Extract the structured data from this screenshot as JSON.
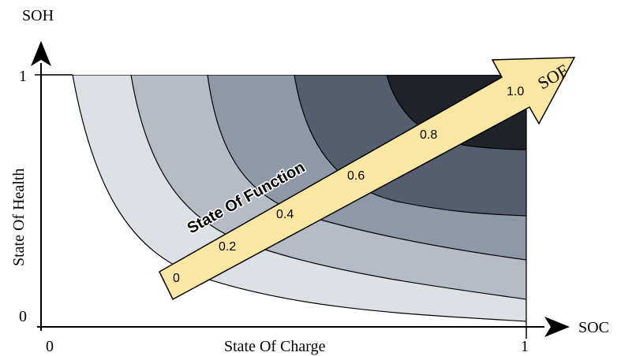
{
  "axes": {
    "y_symbol": "SOH",
    "y_title": "State Of Health",
    "y_tick_top": "1",
    "y_tick_bottom": "0",
    "x_symbol": "SOC",
    "x_title": "State Of Charge",
    "x_tick_left": "0",
    "x_tick_right": "1"
  },
  "sof_arrow": {
    "title": "State Of Function",
    "symbol": "SOF",
    "ticks": [
      "0",
      "0.2",
      "0.4",
      "0.6",
      "0.8",
      "1.0"
    ],
    "fill": "#fbe7a4"
  },
  "regions": {
    "fills": [
      "#ffffff",
      "#dde0e4",
      "#b6bcc6",
      "#8f98a6",
      "#545e6e",
      "#1f2329"
    ]
  }
}
